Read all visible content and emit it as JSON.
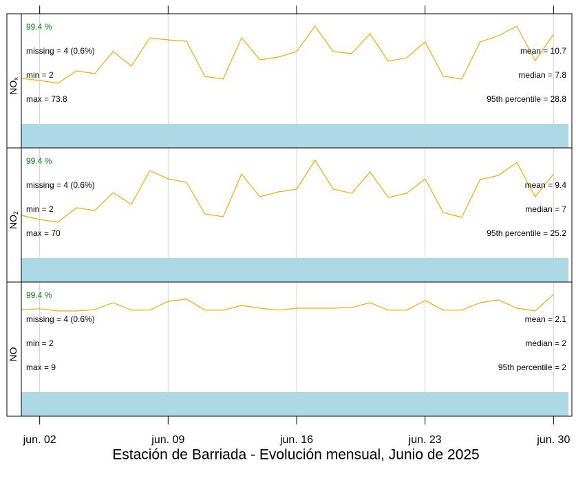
{
  "title": "Estación de Barriada - Evolución mensual, Junio de 2025",
  "chart_data": [
    {
      "type": "line",
      "label": "NO",
      "label_sub": "x",
      "x": [
        1,
        2,
        3,
        4,
        5,
        6,
        7,
        8,
        9,
        10,
        11,
        12,
        13,
        14,
        15,
        16,
        17,
        18,
        19,
        20,
        21,
        22,
        23,
        24,
        25,
        26,
        27,
        28,
        29,
        30
      ],
      "xlim": [
        1,
        31
      ],
      "ylim": [
        0,
        20
      ],
      "series": [
        {
          "color": "#f5a800",
          "values": [
            8.25,
            7.88,
            7.38,
            9.63,
            9.13,
            13.13,
            10.5,
            15.63,
            15.25,
            15,
            8.63,
            8.13,
            15.63,
            11.63,
            12.13,
            13.13,
            17.75,
            13.13,
            12.75,
            16.38,
            11.38,
            12,
            14.88,
            8.63,
            8.13,
            14.88,
            16,
            17.75,
            11.5,
            16.25
          ]
        }
      ],
      "data_capture": 99.4,
      "data_capture_label": "99.4 %",
      "capture_color": "#add8e6",
      "stats_left": [
        "missing = 4 (0.6%)",
        "min = 2",
        "max = 73.8"
      ],
      "stats_right": [
        "mean = 10.7",
        "median = 7.8",
        "95th percentile = 28.8"
      ]
    },
    {
      "type": "line",
      "label": "NO",
      "label_sub": "2",
      "x": [
        1,
        2,
        3,
        4,
        5,
        6,
        7,
        8,
        9,
        10,
        11,
        12,
        13,
        14,
        15,
        16,
        17,
        18,
        19,
        20,
        21,
        22,
        23,
        24,
        25,
        26,
        27,
        28,
        29,
        30
      ],
      "xlim": [
        1,
        31
      ],
      "ylim": [
        0,
        20
      ],
      "series": [
        {
          "color": "#f5a800",
          "values": [
            7.75,
            7,
            6.5,
            9.13,
            8.63,
            11.88,
            9.75,
            15.88,
            14.38,
            13.75,
            8,
            7.5,
            15.25,
            11.13,
            12,
            12.5,
            17.75,
            12.5,
            11.75,
            15.63,
            11,
            11.75,
            14.38,
            8.25,
            7.38,
            14.25,
            15,
            17.38,
            11.13,
            15.25
          ]
        }
      ],
      "data_capture": 99.4,
      "data_capture_label": "99.4 %",
      "capture_color": "#add8e6",
      "stats_left": [
        "missing = 4 (0.6%)",
        "min = 2",
        "max = 70"
      ],
      "stats_right": [
        "mean = 9.4",
        "median = 7",
        "95th percentile = 25.2"
      ]
    },
    {
      "type": "line",
      "label": "NO",
      "x": [
        1,
        2,
        3,
        4,
        5,
        6,
        7,
        8,
        9,
        10,
        11,
        12,
        13,
        14,
        15,
        16,
        17,
        18,
        19,
        20,
        21,
        22,
        23,
        24,
        25,
        26,
        27,
        28,
        29,
        30
      ],
      "xlim": [
        1,
        31
      ],
      "ylim": [
        0,
        4
      ],
      "series": [
        {
          "color": "#f5a800",
          "values": [
            3.0,
            3.03,
            2.95,
            2.95,
            3.0,
            3.25,
            2.98,
            2.98,
            3.3,
            3.38,
            2.98,
            2.98,
            3.15,
            3.05,
            2.98,
            3.05,
            3.05,
            3.05,
            3.08,
            3.25,
            2.98,
            2.98,
            3.33,
            2.98,
            2.98,
            3.25,
            3.35,
            3.05,
            2.95,
            3.55
          ]
        }
      ],
      "data_capture": 99.4,
      "data_capture_label": "99.4 %",
      "capture_color": "#add8e6",
      "stats_left": [
        "missing = 4 (0.6%)",
        "min = 2",
        "max = 9"
      ],
      "stats_right": [
        "mean = 2.1",
        "median = 2",
        "95th percentile = 2"
      ],
      "xticks": [
        {
          "value": 2,
          "label": "jun. 02"
        },
        {
          "value": 9,
          "label": "jun. 09"
        },
        {
          "value": 16,
          "label": "jun. 16"
        },
        {
          "value": 23,
          "label": "jun. 23"
        },
        {
          "value": 30,
          "label": "jun. 30"
        }
      ]
    }
  ]
}
